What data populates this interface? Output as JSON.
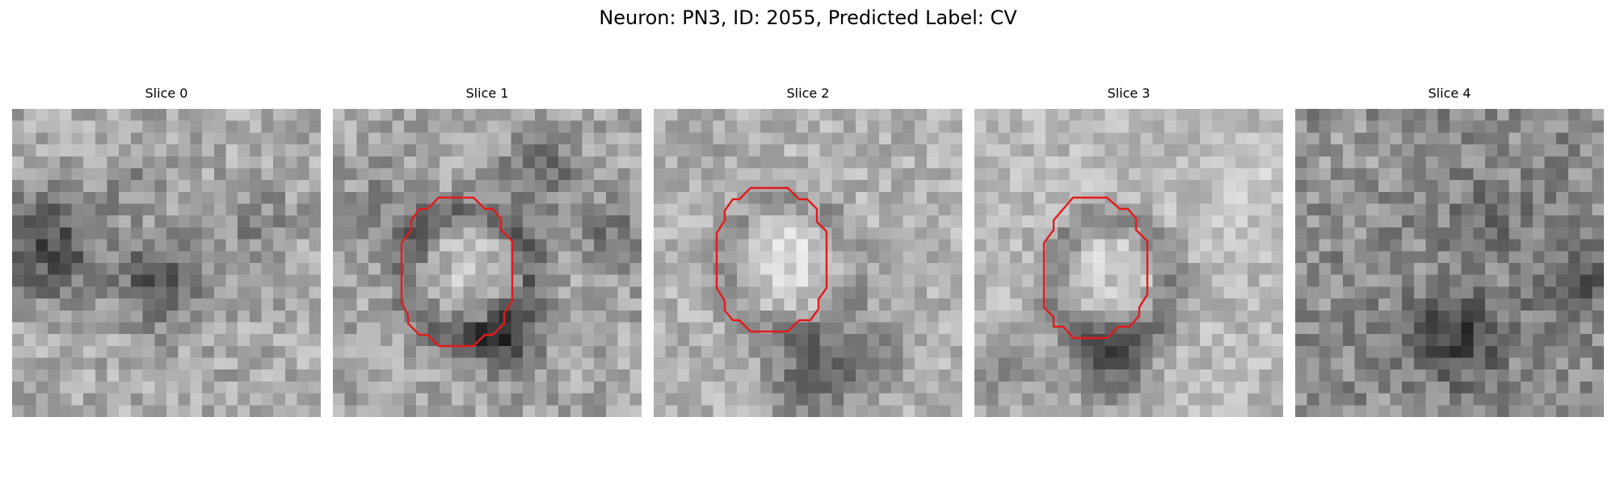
{
  "figure": {
    "title": "Neuron: PN3, ID: 2055, Predicted Label: CV"
  },
  "contour_color": "#e31a1c",
  "colormap": "grayscale",
  "slices": [
    {
      "title": "Slice 0",
      "has_contour": false
    },
    {
      "title": "Slice 1",
      "has_contour": true
    },
    {
      "title": "Slice 2",
      "has_contour": true
    },
    {
      "title": "Slice 3",
      "has_contour": true
    },
    {
      "title": "Slice 4",
      "has_contour": false
    }
  ]
}
